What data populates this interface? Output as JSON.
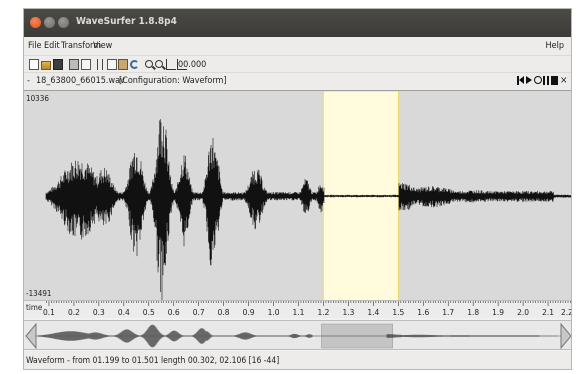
{
  "window": {
    "title": "WaveSurfer 1.8.8p4"
  },
  "menu": {
    "file": "File",
    "edit": "Edit",
    "transform": "Transform",
    "view": "View",
    "help": "Help"
  },
  "toolbar": {
    "time_value": "00.000",
    "icons": [
      "new-file-icon",
      "open-folder-icon",
      "save-icon",
      "print-icon",
      "properties-icon",
      "cut-icon",
      "copy-icon",
      "paste-icon",
      "undo-icon",
      "zoom-in-icon",
      "zoom-out-icon",
      "zoom-fit-icon",
      "zoom-selection-icon"
    ]
  },
  "sound": {
    "dash": "-",
    "file_name": "18_63800_66015.wav",
    "configuration": "[Configuration: Waveform]"
  },
  "waveform": {
    "y_max": "10336",
    "y_min": "-13491",
    "selection": {
      "start": 1.199,
      "end": 1.501
    },
    "view": {
      "start": 0.0,
      "end": 2.2
    },
    "colors": {
      "background": "#d9d9d9",
      "wave": "#111111",
      "selection": "#fffbdc"
    }
  },
  "time_axis": {
    "label": "time",
    "ticks": [
      "0.1",
      "0.2",
      "0.3",
      "0.4",
      "0.5",
      "0.6",
      "0.7",
      "0.8",
      "0.9",
      "1.0",
      "1.1",
      "1.2",
      "1.3",
      "1.4",
      "1.5",
      "1.6",
      "1.7",
      "1.8",
      "1.9",
      "2.0",
      "2.1",
      "2.2"
    ]
  },
  "status": {
    "text": "Waveform - from 01.199 to 01.501 length 00.302, 02.106 [16 -44]"
  }
}
